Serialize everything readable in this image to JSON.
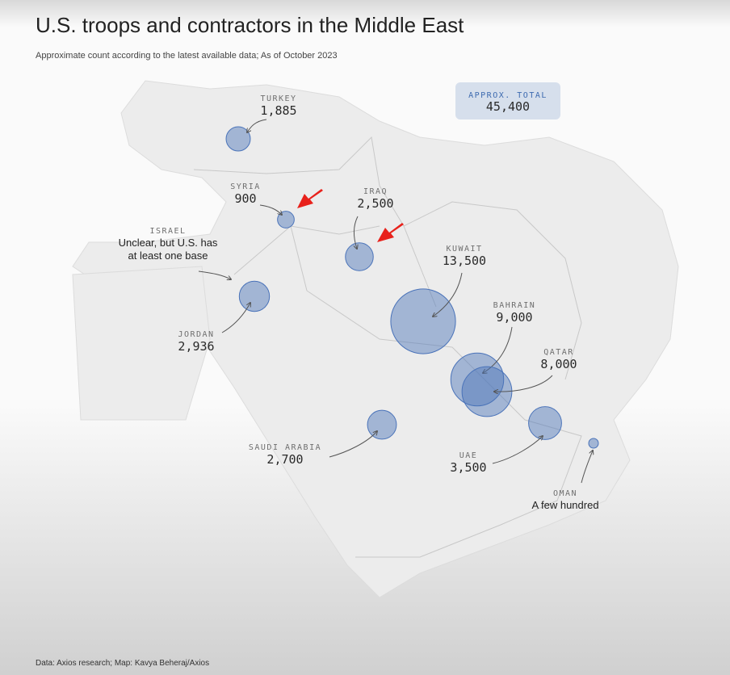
{
  "header": {
    "title": "U.S. troops and contractors in the Middle East",
    "subtitle": "Approximate count according to the latest available data; As of October 2023"
  },
  "total": {
    "label": "APPROX. TOTAL",
    "value": "45,400"
  },
  "regions": [
    {
      "name": "TURKEY",
      "count": {
        "value": 1885,
        "label": "1,885"
      }
    },
    {
      "name": "SYRIA",
      "count": {
        "value": 900,
        "label": "900"
      }
    },
    {
      "name": "IRAQ",
      "count": {
        "value": 2500,
        "label": "2,500"
      }
    },
    {
      "name": "ISRAEL",
      "note_lines": [
        "Unclear, but U.S. has",
        "at least one base"
      ]
    },
    {
      "name": "JORDAN",
      "count": {
        "value": 2936,
        "label": "2,936"
      }
    },
    {
      "name": "KUWAIT",
      "count": {
        "value": 13500,
        "label": "13,500"
      }
    },
    {
      "name": "BAHRAIN",
      "count": {
        "value": 9000,
        "label": "9,000"
      }
    },
    {
      "name": "QATAR",
      "count": {
        "value": 8000,
        "label": "8,000"
      }
    },
    {
      "name": "SAUDI ARABIA",
      "count": {
        "value": 2700,
        "label": "2,700"
      }
    },
    {
      "name": "UAE",
      "count": {
        "value": 3500,
        "label": "3,500"
      }
    },
    {
      "name": "OMAN",
      "note_lines": [
        "A few hundred"
      ]
    }
  ],
  "footer": "Data: Axios research; Map: Kavya Beheraj/Axios"
}
